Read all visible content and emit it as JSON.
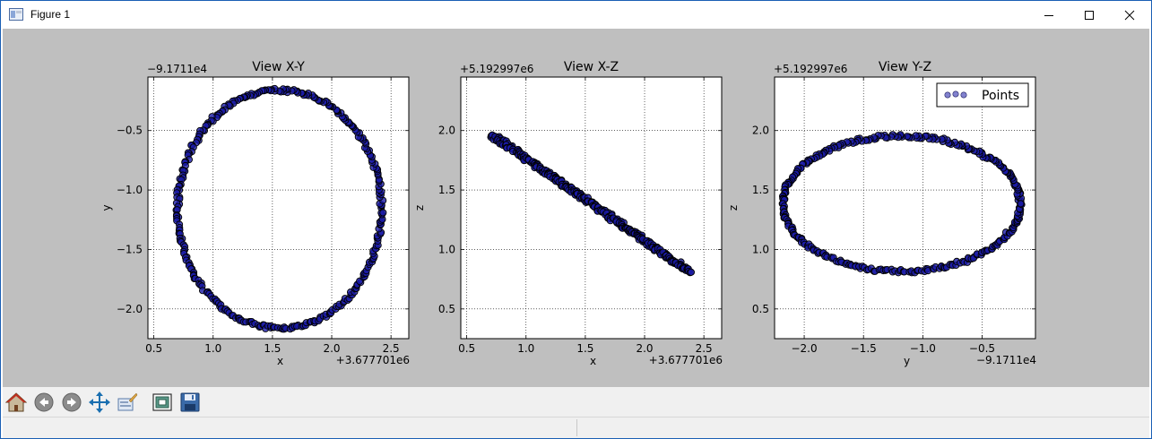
{
  "window": {
    "title": "Figure 1",
    "controls": {
      "minimize": "minimize",
      "maximize": "maximize",
      "close": "close"
    }
  },
  "toolbar": {
    "buttons": [
      {
        "icon": "home-icon",
        "name": "home-button"
      },
      {
        "icon": "back-arrow-icon",
        "name": "back-button"
      },
      {
        "icon": "forward-arrow-icon",
        "name": "forward-button"
      },
      {
        "icon": "pan-icon",
        "name": "pan-button"
      },
      {
        "icon": "zoom-rect-icon",
        "name": "zoom-button"
      },
      {
        "icon": "configure-subplots-icon",
        "name": "subplots-button"
      },
      {
        "icon": "save-icon",
        "name": "save-button"
      }
    ]
  },
  "chart_data": [
    {
      "type": "scatter",
      "title": "View X-Y",
      "xlabel": "x",
      "ylabel": "y",
      "x_offset": "+3.677701e6",
      "y_offset": "−9.1711e4",
      "xlim": [
        0.45,
        2.65
      ],
      "ylim": [
        -2.25,
        -0.05
      ],
      "xticks": [
        "0.5",
        "1.0",
        "1.5",
        "2.0",
        "2.5"
      ],
      "xtick_values": [
        0.5,
        1.0,
        1.5,
        2.0,
        2.5
      ],
      "yticks": [
        "−0.5",
        "−1.0",
        "−1.5",
        "−2.0"
      ],
      "ytick_values": [
        -0.5,
        -1.0,
        -1.5,
        -2.0
      ],
      "grid": true,
      "shape": "ellipse",
      "center": [
        1.56,
        -1.16
      ],
      "radii": [
        0.86,
        1.0
      ],
      "rotation_deg": 0
    },
    {
      "type": "scatter",
      "title": "View X-Z",
      "xlabel": "x",
      "ylabel": "z",
      "x_offset": "+3.677701e6",
      "y_offset": "+5.192997e6",
      "xlim": [
        0.45,
        2.65
      ],
      "ylim": [
        0.25,
        2.45
      ],
      "xticks": [
        "0.5",
        "1.0",
        "1.5",
        "2.0",
        "2.5"
      ],
      "xtick_values": [
        0.5,
        1.0,
        1.5,
        2.0,
        2.5
      ],
      "yticks": [
        "2.0",
        "1.5",
        "1.0",
        "0.5"
      ],
      "ytick_values": [
        2.0,
        1.5,
        1.0,
        0.5
      ],
      "grid": true,
      "shape": "line-band",
      "start": [
        0.72,
        1.96
      ],
      "end": [
        2.38,
        0.81
      ]
    },
    {
      "type": "scatter",
      "title": "View Y-Z",
      "xlabel": "y",
      "ylabel": "z",
      "x_offset": "−9.1711e4",
      "y_offset": "+5.192997e6",
      "xlim": [
        -2.25,
        -0.05
      ],
      "ylim": [
        0.25,
        2.45
      ],
      "xticks": [
        "−2.0",
        "−1.5",
        "−1.0",
        "−0.5"
      ],
      "xtick_values": [
        -2.0,
        -1.5,
        -1.0,
        -0.5
      ],
      "yticks": [
        "2.0",
        "1.5",
        "1.0",
        "0.5"
      ],
      "ytick_values": [
        2.0,
        1.5,
        1.0,
        0.5
      ],
      "grid": true,
      "shape": "ellipse",
      "center": [
        -1.18,
        1.385
      ],
      "radii": [
        1.0,
        0.57
      ],
      "rotation_deg": 0,
      "legend": {
        "label": "Points",
        "position": "top-right"
      }
    }
  ],
  "colors": {
    "figure_bg": "#bfbfbf",
    "axes_bg": "#ffffff",
    "marker_fill": "#1a1aa6",
    "marker_edge": "#000000"
  }
}
